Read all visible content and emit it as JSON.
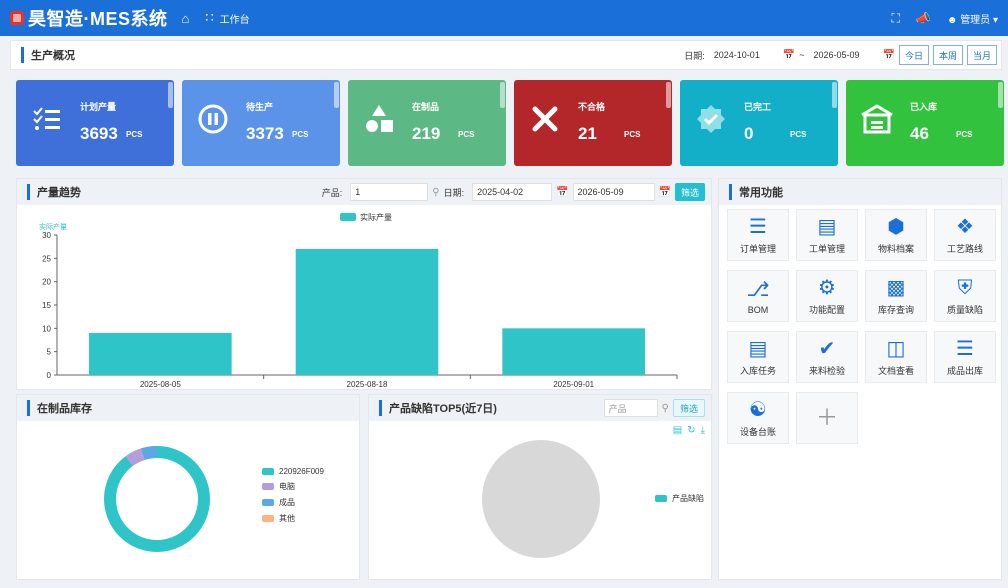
{
  "header": {
    "brand": "昊智造·MES系统",
    "workbench": "工作台",
    "user": "管理员"
  },
  "overview": {
    "title": "生产概况",
    "date_label": "日期:",
    "start_date": "2024-10-01",
    "separator": "~",
    "end_date": "2026-05-09",
    "today": "今日",
    "this_week": "本周",
    "this_month": "当月"
  },
  "stats": [
    {
      "label": "计划产量",
      "value": "3693",
      "unit": "PCS",
      "icon": "list-check-icon",
      "color": "#3f6fd8"
    },
    {
      "label": "待生产",
      "value": "3373",
      "unit": "PCS",
      "icon": "pause-circle-icon",
      "color": "#5a93e8"
    },
    {
      "label": "在制品",
      "value": "219",
      "unit": "PCS",
      "icon": "shapes-icon",
      "color": "#5cb985"
    },
    {
      "label": "不合格",
      "value": "21",
      "unit": "PCS",
      "icon": "close-icon",
      "color": "#b3272b"
    },
    {
      "label": "已完工",
      "value": "0",
      "unit": "PCS",
      "icon": "badge-check-icon",
      "color": "#13aec8"
    },
    {
      "label": "已入库",
      "value": "46",
      "unit": "PCS",
      "icon": "warehouse-icon",
      "color": "#33c23d"
    }
  ],
  "trend": {
    "title": "产量趋势",
    "product_label": "产品:",
    "product_value": "1",
    "date_label": "日期:",
    "start_date": "2025-04-02",
    "end_date": "2026-05-09",
    "filter": "筛选"
  },
  "chart_data": {
    "type": "bar",
    "categories": [
      "2025-08-05",
      "2025-08-18",
      "2025-09-01"
    ],
    "series": [
      {
        "name": "实际产量",
        "values": [
          9,
          27,
          10
        ]
      }
    ],
    "ylabel": "实际产量",
    "ylim": [
      0,
      30
    ],
    "yticks": [
      0,
      5,
      10,
      15,
      20,
      25,
      30
    ],
    "legend": "top-center",
    "color": "#2ec4c8"
  },
  "wip": {
    "title": "在制品库存",
    "legend": [
      {
        "name": "220926F009",
        "color": "#2ec4c8"
      },
      {
        "name": "电脑",
        "color": "#b39ddb"
      },
      {
        "name": "成品",
        "color": "#5aa9e6"
      },
      {
        "name": "其他",
        "color": "#ffb380"
      }
    ]
  },
  "defects": {
    "title": "产品缺陷TOP5(近7日)",
    "placeholder": "产品",
    "filter": "筛选",
    "legend": "产品缺陷"
  },
  "quick": {
    "title": "常用功能",
    "items": [
      {
        "label": "订单管理",
        "icon": "menu-lines-icon"
      },
      {
        "label": "工单管理",
        "icon": "list-box-icon"
      },
      {
        "label": "物料档案",
        "icon": "cube-icon"
      },
      {
        "label": "工艺路线",
        "icon": "route-icon"
      },
      {
        "label": "BOM",
        "icon": "branch-icon"
      },
      {
        "label": "功能配置",
        "icon": "gears-icon"
      },
      {
        "label": "库存查询",
        "icon": "factory-icon"
      },
      {
        "label": "质量缺陷",
        "icon": "shield-icon"
      },
      {
        "label": "入库任务",
        "icon": "server-icon"
      },
      {
        "label": "来料检验",
        "icon": "shield-check-icon"
      },
      {
        "label": "文档查看",
        "icon": "book-open-icon"
      },
      {
        "label": "成品出库",
        "icon": "checklist-icon"
      },
      {
        "label": "设备台账",
        "icon": "device-icon"
      },
      {
        "label": "",
        "icon": "plus-icon"
      }
    ]
  }
}
